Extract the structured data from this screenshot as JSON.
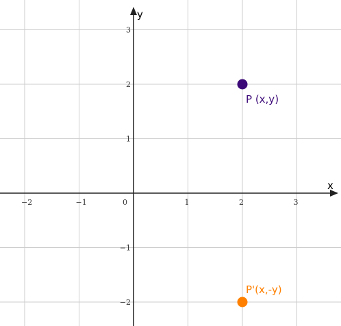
{
  "chart_data": {
    "type": "scatter",
    "title": "",
    "xlabel": "x",
    "ylabel": "y",
    "xlim": [
      -2.4,
      3.8
    ],
    "ylim": [
      -2.4,
      3.3
    ],
    "xticks": [
      -2,
      -1,
      1,
      2,
      3
    ],
    "yticks": [
      -2,
      -1,
      1,
      2,
      3
    ],
    "x_tick_labels": [
      "−2",
      "−1",
      "1",
      "2",
      "3"
    ],
    "y_tick_labels": [
      "−2",
      "−1",
      "1",
      "2",
      "3"
    ],
    "origin_label": "0",
    "grid": true,
    "points": [
      {
        "x": 2,
        "y": 2,
        "label": "P (x,y)",
        "color": "#3c0a78"
      },
      {
        "x": 2,
        "y": -2,
        "label": "P'(x,-y)",
        "color": "#ff8000"
      }
    ]
  },
  "colors": {
    "grid": "#cccccc",
    "axis": "#222222"
  }
}
